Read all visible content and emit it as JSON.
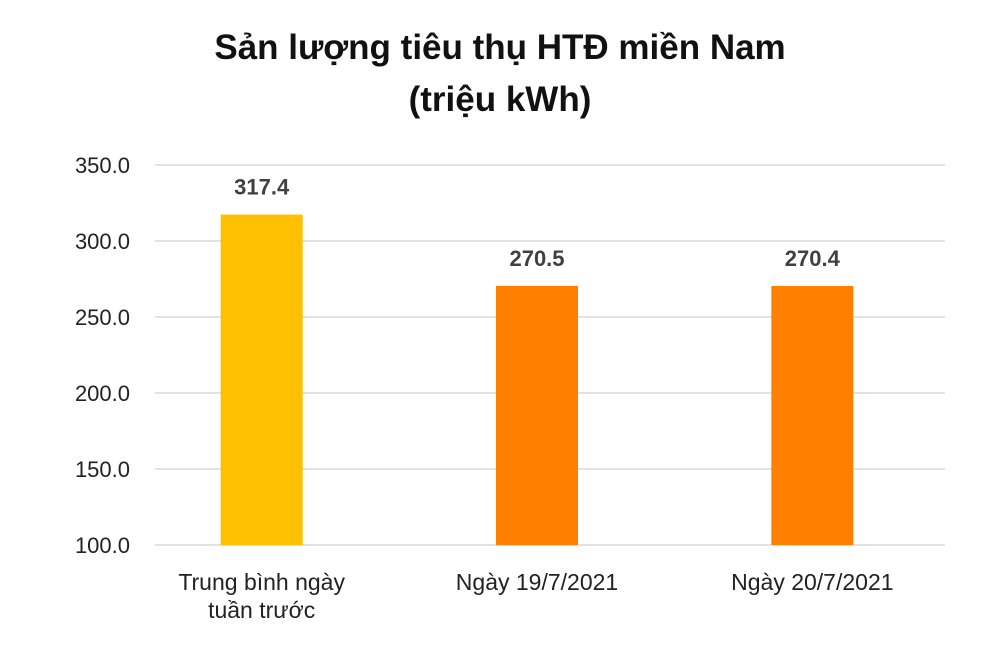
{
  "chart_data": {
    "type": "bar",
    "title_lines": [
      "Sản lượng tiêu thụ HTĐ miền Nam",
      "(triệu kWh)"
    ],
    "categories": [
      [
        "Trung bình ngày",
        "tuần trước"
      ],
      [
        "Ngày 19/7/2021"
      ],
      [
        "Ngày 20/7/2021"
      ]
    ],
    "values": [
      317.4,
      270.5,
      270.4
    ],
    "value_labels": [
      "317.4",
      "270.5",
      "270.4"
    ],
    "colors": [
      "#FFC000",
      "#FF7F00",
      "#FF7F00"
    ],
    "ylim": [
      100,
      350
    ],
    "yticks": [
      "100.0",
      "150.0",
      "200.0",
      "250.0",
      "300.0",
      "350.0"
    ],
    "grid": true,
    "legend": "none"
  }
}
